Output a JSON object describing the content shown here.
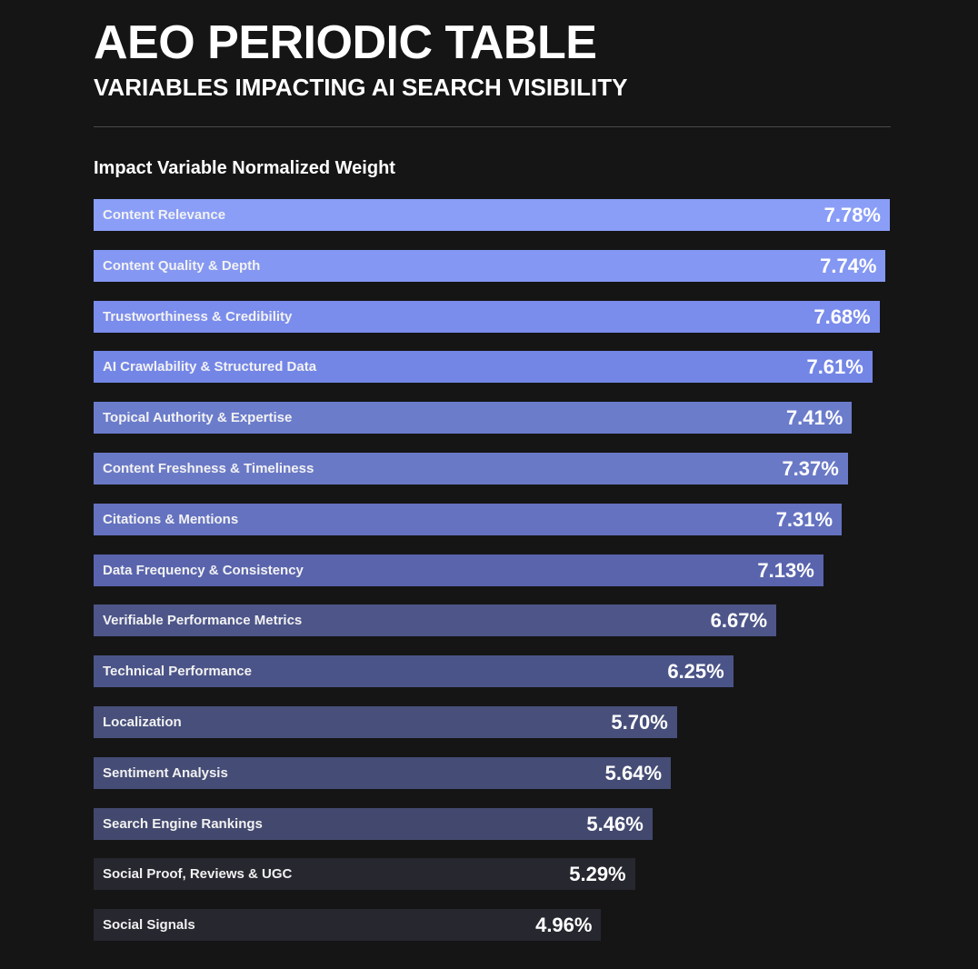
{
  "header": {
    "title": "AEO PERIODIC TABLE",
    "subtitle": "VARIABLES IMPACTING AI SEARCH VISIBILITY"
  },
  "chart_data": {
    "type": "bar",
    "orientation": "horizontal",
    "title": "Impact Variable Normalized Weight",
    "xlim": [
      0,
      7.78
    ],
    "grid": false,
    "categories": [
      "Content Relevance",
      "Content Quality & Depth",
      "Trustworthiness & Credibility",
      "AI Crawlability & Structured Data",
      "Topical Authority & Expertise",
      "Content Freshness & Timeliness",
      "Citations & Mentions",
      "Data Frequency & Consistency",
      "Verifiable Performance Metrics",
      "Technical Performance",
      "Localization",
      "Sentiment Analysis",
      "Search Engine Rankings",
      "Social Proof, Reviews & UGC",
      "Social Signals"
    ],
    "values": [
      7.78,
      7.74,
      7.68,
      7.61,
      7.41,
      7.37,
      7.31,
      7.13,
      6.67,
      6.25,
      5.7,
      5.64,
      5.46,
      5.29,
      4.96
    ],
    "data_labels": [
      "7.78%",
      "7.74%",
      "7.68%",
      "7.61%",
      "7.41%",
      "7.37%",
      "7.31%",
      "7.13%",
      "6.67%",
      "6.25%",
      "5.70%",
      "5.64%",
      "5.46%",
      "5.29%",
      "4.96%"
    ],
    "colors": [
      "#8a9ef8",
      "#8497f2",
      "#7a8cec",
      "#7386e6",
      "#6b7ccb",
      "#6a79c6",
      "#6472c0",
      "#5964ad",
      "#4d5589",
      "#4b5488",
      "#474f7a",
      "#454c75",
      "#43496e",
      "#26272f",
      "#26272f"
    ]
  }
}
